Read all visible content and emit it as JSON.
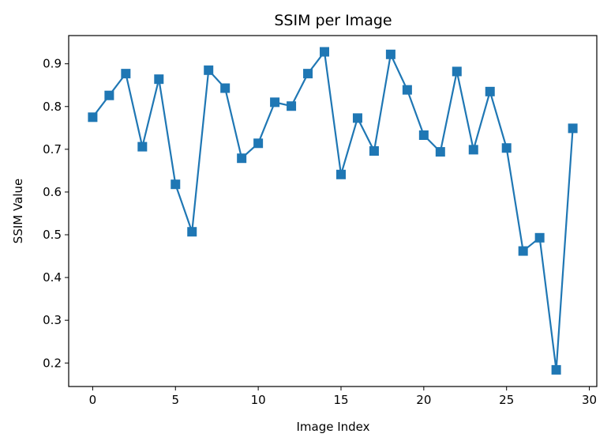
{
  "chart_data": {
    "type": "line",
    "title": "SSIM per Image",
    "xlabel": "Image Index",
    "ylabel": "SSIM Value",
    "x": [
      0,
      1,
      2,
      3,
      4,
      5,
      6,
      7,
      8,
      9,
      10,
      11,
      12,
      13,
      14,
      15,
      16,
      17,
      18,
      19,
      20,
      21,
      22,
      23,
      24,
      25,
      26,
      27,
      28,
      29
    ],
    "series": [
      {
        "values": [
          0.775,
          0.826,
          0.877,
          0.706,
          0.864,
          0.618,
          0.507,
          0.885,
          0.843,
          0.679,
          0.714,
          0.81,
          0.801,
          0.877,
          0.928,
          0.641,
          0.773,
          0.696,
          0.922,
          0.839,
          0.733,
          0.694,
          0.882,
          0.699,
          0.835,
          0.703,
          0.462,
          0.493,
          0.184,
          0.749
        ],
        "color": "#1f77b4",
        "marker": "square"
      }
    ],
    "xlim": [
      -1.45,
      30.45
    ],
    "ylim": [
      0.145,
      0.966
    ],
    "xticks": [
      0,
      5,
      10,
      15,
      20,
      25,
      30
    ],
    "xtick_labels": [
      "0",
      "5",
      "10",
      "15",
      "20",
      "25",
      "30"
    ],
    "yticks": [
      0.2,
      0.3,
      0.4,
      0.5,
      0.6,
      0.7,
      0.8,
      0.9
    ],
    "ytick_labels": [
      "0.2",
      "0.3",
      "0.4",
      "0.5",
      "0.6",
      "0.7",
      "0.8",
      "0.9"
    ],
    "grid": false,
    "legend": "none"
  }
}
